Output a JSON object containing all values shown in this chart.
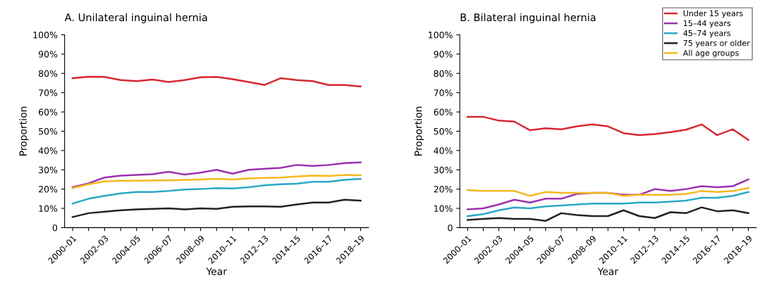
{
  "chart_data": [
    {
      "type": "line",
      "title": "A. Unilateral inguinal hernia",
      "xlabel": "Year",
      "ylabel": "Proportion",
      "categories": [
        "2000–01",
        null,
        "2002–03",
        null,
        "2004–05",
        null,
        "2006–07",
        null,
        "2008–09",
        null,
        "2010–11",
        null,
        "2012–13",
        null,
        "2014–15",
        null,
        "2016–17",
        null,
        "2018–19"
      ],
      "ylim": [
        0,
        100
      ],
      "yticks": [
        {
          "value": 0,
          "label": "0"
        },
        {
          "value": 10,
          "label": "10%"
        },
        {
          "value": 20,
          "label": "20%"
        },
        {
          "value": 30,
          "label": "30%"
        },
        {
          "value": 40,
          "label": "40%"
        },
        {
          "value": 50,
          "label": "50%"
        },
        {
          "value": 60,
          "label": "60%"
        },
        {
          "value": 70,
          "label": "70%"
        },
        {
          "value": 80,
          "label": "80%"
        },
        {
          "value": 90,
          "label": "90%"
        },
        {
          "value": 100,
          "label": "100%"
        }
      ],
      "grid": false,
      "marker": "none",
      "line_style": "solid",
      "series": [
        {
          "color": "#d7282f",
          "values": [
            77.5,
            78.3,
            78.2,
            76.5,
            76,
            76.8,
            75.5,
            76.5,
            78,
            78.2,
            77,
            75.5,
            74,
            77.5,
            76.5,
            76,
            74,
            74,
            73.2
          ]
        },
        {
          "color": "#9b30b0",
          "values": [
            21,
            23,
            26,
            27,
            27.3,
            27.7,
            29,
            27.5,
            28.5,
            30,
            28,
            30,
            30.5,
            31,
            32.5,
            32,
            32.5,
            33.5,
            33.8
          ]
        },
        {
          "color": "#2aa8c8",
          "values": [
            12.5,
            15,
            16.5,
            17.8,
            18.5,
            18.5,
            19,
            19.8,
            20,
            20.5,
            20.3,
            21,
            22,
            22.5,
            22.8,
            23.8,
            23.8,
            24.8,
            25.3
          ]
        },
        {
          "color": "#222222",
          "values": [
            5.5,
            7.5,
            8.3,
            9,
            9.5,
            9.7,
            10,
            9.5,
            10,
            9.7,
            10.8,
            11,
            11,
            10.8,
            12,
            13,
            13,
            14.5,
            14
          ]
        },
        {
          "color": "#f5b820",
          "values": [
            20.5,
            22.5,
            24,
            24.3,
            24.3,
            24.5,
            24.5,
            24.8,
            25,
            25.3,
            25,
            25.5,
            25.8,
            26,
            26.5,
            27,
            26.8,
            27.3,
            27.2
          ]
        }
      ]
    },
    {
      "type": "line",
      "title": "B. Bilateral inguinal hernia",
      "xlabel": "Year",
      "ylabel": "Proportion",
      "categories": [
        "2000–01",
        null,
        "2002–03",
        null,
        "2004–05",
        null,
        "2006–07",
        null,
        "2008–09",
        null,
        "2010–11",
        null,
        "2012–13",
        null,
        "2014–15",
        null,
        "2016–17",
        null,
        "2018–19"
      ],
      "ylim": [
        0,
        100
      ],
      "yticks": [
        {
          "value": 0,
          "label": "0"
        },
        {
          "value": 10,
          "label": "10%"
        },
        {
          "value": 20,
          "label": "20%"
        },
        {
          "value": 30,
          "label": "30%"
        },
        {
          "value": 40,
          "label": "40%"
        },
        {
          "value": 50,
          "label": "50%"
        },
        {
          "value": 60,
          "label": "60%"
        },
        {
          "value": 70,
          "label": "70%"
        },
        {
          "value": 80,
          "label": "80%"
        },
        {
          "value": 90,
          "label": "90%"
        },
        {
          "value": 100,
          "label": "100%"
        }
      ],
      "grid": false,
      "legend": "top right",
      "marker": "none",
      "line_style": "solid",
      "series": [
        {
          "name": "Under 15 years",
          "color": "#d7282f",
          "values": [
            57.5,
            57.5,
            55.5,
            55,
            50.5,
            51.5,
            51,
            52.5,
            53.5,
            52.5,
            49,
            48,
            48.5,
            49.5,
            50.8,
            53.5,
            48,
            51,
            45.5
          ]
        },
        {
          "name": "15–44 years",
          "color": "#9b30b0",
          "values": [
            9.5,
            10,
            12,
            14.5,
            13,
            15,
            15,
            17.5,
            18,
            18,
            17,
            17,
            20,
            19,
            20,
            21.5,
            21,
            21.5,
            25
          ]
        },
        {
          "name": "45–74 years",
          "color": "#2aa8c8",
          "values": [
            6,
            7,
            9,
            10.5,
            10,
            11,
            11.5,
            12,
            12.5,
            12.5,
            12.5,
            13,
            13,
            13.5,
            14,
            15.5,
            15.5,
            16.5,
            18.5
          ]
        },
        {
          "name": "75 years or older",
          "color": "#222222",
          "values": [
            4,
            4.5,
            5,
            4.5,
            4.5,
            3.5,
            7.5,
            6.5,
            6,
            6,
            9,
            6,
            5,
            8,
            7.5,
            10.5,
            8.5,
            9,
            7.5
          ]
        },
        {
          "name": "All age groups",
          "color": "#f5b820",
          "values": [
            19.5,
            19,
            19,
            19,
            16.5,
            18.5,
            18,
            18,
            18,
            18,
            16.5,
            17,
            17,
            17,
            17.5,
            19,
            18.5,
            19,
            20.5
          ]
        }
      ]
    }
  ]
}
